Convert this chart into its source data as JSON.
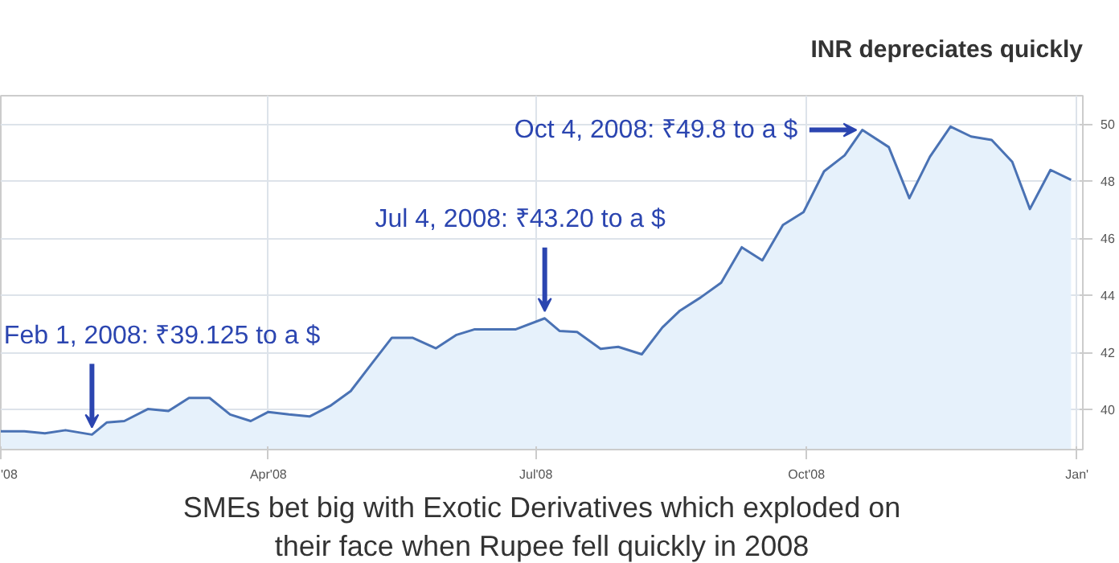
{
  "chart_data": {
    "type": "area",
    "title": "INR depreciates quickly",
    "x": [
      "2008-01-01",
      "2008-01-09",
      "2008-01-16",
      "2008-01-23",
      "2008-02-01",
      "2008-02-06",
      "2008-02-12",
      "2008-02-20",
      "2008-02-27",
      "2008-03-05",
      "2008-03-12",
      "2008-03-19",
      "2008-03-26",
      "2008-04-01",
      "2008-04-08",
      "2008-04-15",
      "2008-04-22",
      "2008-04-29",
      "2008-05-06",
      "2008-05-13",
      "2008-05-20",
      "2008-05-28",
      "2008-06-04",
      "2008-06-10",
      "2008-06-24",
      "2008-07-04",
      "2008-07-09",
      "2008-07-15",
      "2008-07-23",
      "2008-07-29",
      "2008-08-06",
      "2008-08-13",
      "2008-08-19",
      "2008-08-26",
      "2008-09-02",
      "2008-09-09",
      "2008-09-16",
      "2008-09-23",
      "2008-09-30",
      "2008-10-07",
      "2008-10-14",
      "2008-10-20",
      "2008-10-29",
      "2008-11-05",
      "2008-11-12",
      "2008-11-19",
      "2008-11-26",
      "2008-12-03",
      "2008-12-10",
      "2008-12-16",
      "2008-12-23",
      "2008-12-30"
    ],
    "series": [
      {
        "color": "#4a72b4",
        "values": [
          39.24,
          39.24,
          39.17,
          39.28,
          39.125,
          39.55,
          39.6,
          40.02,
          39.95,
          40.41,
          40.41,
          39.83,
          39.6,
          39.92,
          39.83,
          39.76,
          40.13,
          40.65,
          41.59,
          42.52,
          42.52,
          42.15,
          42.62,
          42.81,
          42.81,
          43.2,
          42.76,
          42.72,
          42.13,
          42.2,
          41.94,
          42.88,
          43.47,
          43.93,
          44.45,
          45.69,
          45.23,
          46.47,
          46.92,
          48.35,
          48.91,
          49.8,
          49.2,
          47.41,
          48.86,
          49.92,
          49.57,
          49.45,
          48.68,
          47.03,
          48.4,
          48.05
        ]
      }
    ],
    "xlim": [
      "2008-01-01",
      "2009-01-03"
    ],
    "xticks": [
      {
        "value": "2008-01-01",
        "label": "'08"
      },
      {
        "value": "2008-04-01",
        "label": "Apr'08"
      },
      {
        "value": "2008-07-01",
        "label": "Jul'08"
      },
      {
        "value": "2008-10-01",
        "label": "Oct'08"
      },
      {
        "value": "2009-01-01",
        "label": "Jan'"
      }
    ],
    "ylim": [
      38.6,
      51
    ],
    "yticks": [
      40,
      42,
      44,
      46,
      48,
      50
    ],
    "grid": true,
    "annotations": [
      {
        "text": "Feb 1, 2008: ₹39.125 to a $",
        "x": "2008-02-01",
        "y": 39.125
      },
      {
        "text": "Jul 4, 2008: ₹43.20 to a $",
        "x": "2008-07-04",
        "y": 43.2
      },
      {
        "text": "Oct 4, 2008: ₹49.8 to a $",
        "x": "2008-10-20",
        "y": 49.8
      },
      "SMEs bet big with Exotic Derivatives which exploded on\ntheir face when Rupee fell quickly in 2008"
    ]
  }
}
